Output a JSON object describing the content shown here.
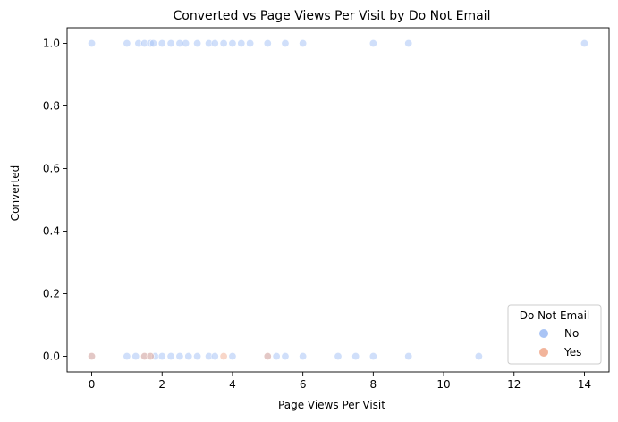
{
  "chart_data": {
    "type": "scatter",
    "title": "Converted vs Page Views Per Visit by Do Not Email",
    "xlabel": "Page Views Per Visit",
    "ylabel": "Converted",
    "xlim": [
      -0.7,
      14.7
    ],
    "ylim": [
      -0.05,
      1.05
    ],
    "xticks": [
      0,
      2,
      4,
      6,
      8,
      10,
      12,
      14
    ],
    "yticks": [
      0.0,
      0.2,
      0.4,
      0.6,
      0.8,
      1.0
    ],
    "grid": false,
    "legend": {
      "title": "Do Not Email",
      "placement": "bottom-right",
      "entries": [
        "No",
        "Yes"
      ]
    },
    "colors": {
      "No": "#a9c4f5",
      "Yes": "#f2b49b"
    },
    "series": [
      {
        "name": "No",
        "color": "#a9c4f5",
        "points": [
          {
            "x": 0,
            "y": 1
          },
          {
            "x": 1,
            "y": 1
          },
          {
            "x": 1.33,
            "y": 1
          },
          {
            "x": 1.5,
            "y": 1
          },
          {
            "x": 1.67,
            "y": 1
          },
          {
            "x": 1.75,
            "y": 1
          },
          {
            "x": 2,
            "y": 1
          },
          {
            "x": 2.25,
            "y": 1
          },
          {
            "x": 2.5,
            "y": 1
          },
          {
            "x": 2.67,
            "y": 1
          },
          {
            "x": 3,
            "y": 1
          },
          {
            "x": 3.33,
            "y": 1
          },
          {
            "x": 3.5,
            "y": 1
          },
          {
            "x": 3.75,
            "y": 1
          },
          {
            "x": 4,
            "y": 1
          },
          {
            "x": 4.25,
            "y": 1
          },
          {
            "x": 4.5,
            "y": 1
          },
          {
            "x": 5,
            "y": 1
          },
          {
            "x": 5.5,
            "y": 1
          },
          {
            "x": 6,
            "y": 1
          },
          {
            "x": 8,
            "y": 1
          },
          {
            "x": 9,
            "y": 1
          },
          {
            "x": 14,
            "y": 1
          },
          {
            "x": 0,
            "y": 0
          },
          {
            "x": 1,
            "y": 0
          },
          {
            "x": 1.25,
            "y": 0
          },
          {
            "x": 1.5,
            "y": 0
          },
          {
            "x": 1.67,
            "y": 0
          },
          {
            "x": 1.8,
            "y": 0
          },
          {
            "x": 2,
            "y": 0
          },
          {
            "x": 2.25,
            "y": 0
          },
          {
            "x": 2.5,
            "y": 0
          },
          {
            "x": 2.75,
            "y": 0
          },
          {
            "x": 3,
            "y": 0
          },
          {
            "x": 3.33,
            "y": 0
          },
          {
            "x": 3.5,
            "y": 0
          },
          {
            "x": 4,
            "y": 0
          },
          {
            "x": 5,
            "y": 0
          },
          {
            "x": 5.25,
            "y": 0
          },
          {
            "x": 5.5,
            "y": 0
          },
          {
            "x": 6,
            "y": 0
          },
          {
            "x": 7,
            "y": 0
          },
          {
            "x": 7.5,
            "y": 0
          },
          {
            "x": 8,
            "y": 0
          },
          {
            "x": 9,
            "y": 0
          },
          {
            "x": 11,
            "y": 0
          }
        ]
      },
      {
        "name": "Yes",
        "color": "#f2b49b",
        "points": [
          {
            "x": 0,
            "y": 0
          },
          {
            "x": 1.5,
            "y": 0
          },
          {
            "x": 1.67,
            "y": 0
          },
          {
            "x": 3.75,
            "y": 0
          },
          {
            "x": 5,
            "y": 0
          }
        ]
      }
    ]
  }
}
